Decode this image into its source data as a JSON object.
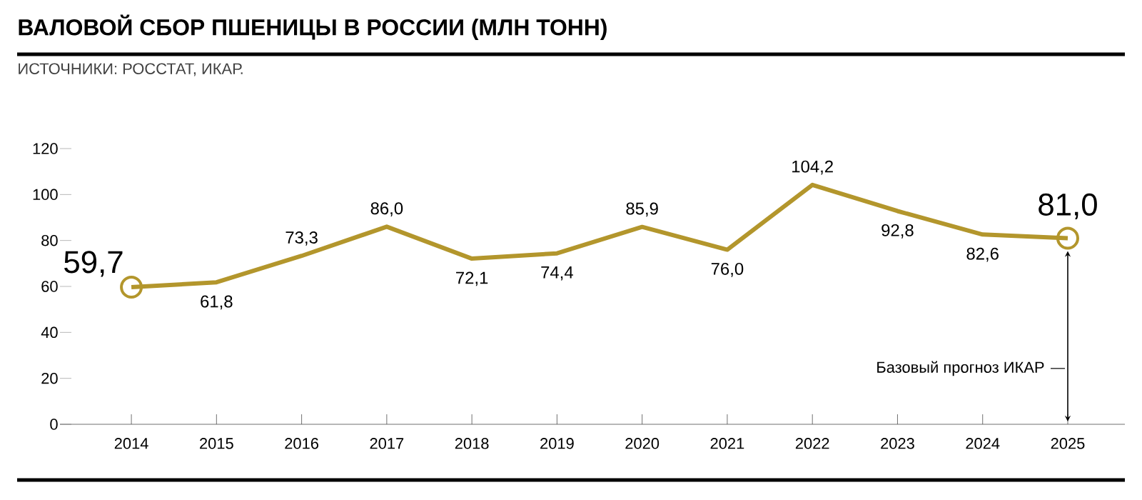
{
  "chart_data": {
    "type": "line",
    "title": "ВАЛОВОЙ СБОР ПШЕНИЦЫ В РОССИИ (МЛН ТОНН)",
    "categories": [
      "2014",
      "2015",
      "2016",
      "2017",
      "2018",
      "2019",
      "2020",
      "2021",
      "2022",
      "2023",
      "2024",
      "2025"
    ],
    "values": [
      59.7,
      61.8,
      73.3,
      86.0,
      72.1,
      74.4,
      85.9,
      76.0,
      104.2,
      92.8,
      82.6,
      81.0
    ],
    "value_labels": [
      "59,7",
      "61,8",
      "73,3",
      "86,0",
      "72,1",
      "74,4",
      "85,9",
      "76,0",
      "104,2",
      "92,8",
      "82,6",
      "81,0"
    ],
    "color": "#b3962c",
    "ylim": [
      0,
      120
    ],
    "yticks": [
      0,
      20,
      40,
      60,
      80,
      100,
      120
    ],
    "grid": false,
    "annotations": [
      "ИСТОЧНИКИ: РОССТАТ, ИКАР.",
      "Базовый прогноз ИКАР"
    ]
  }
}
